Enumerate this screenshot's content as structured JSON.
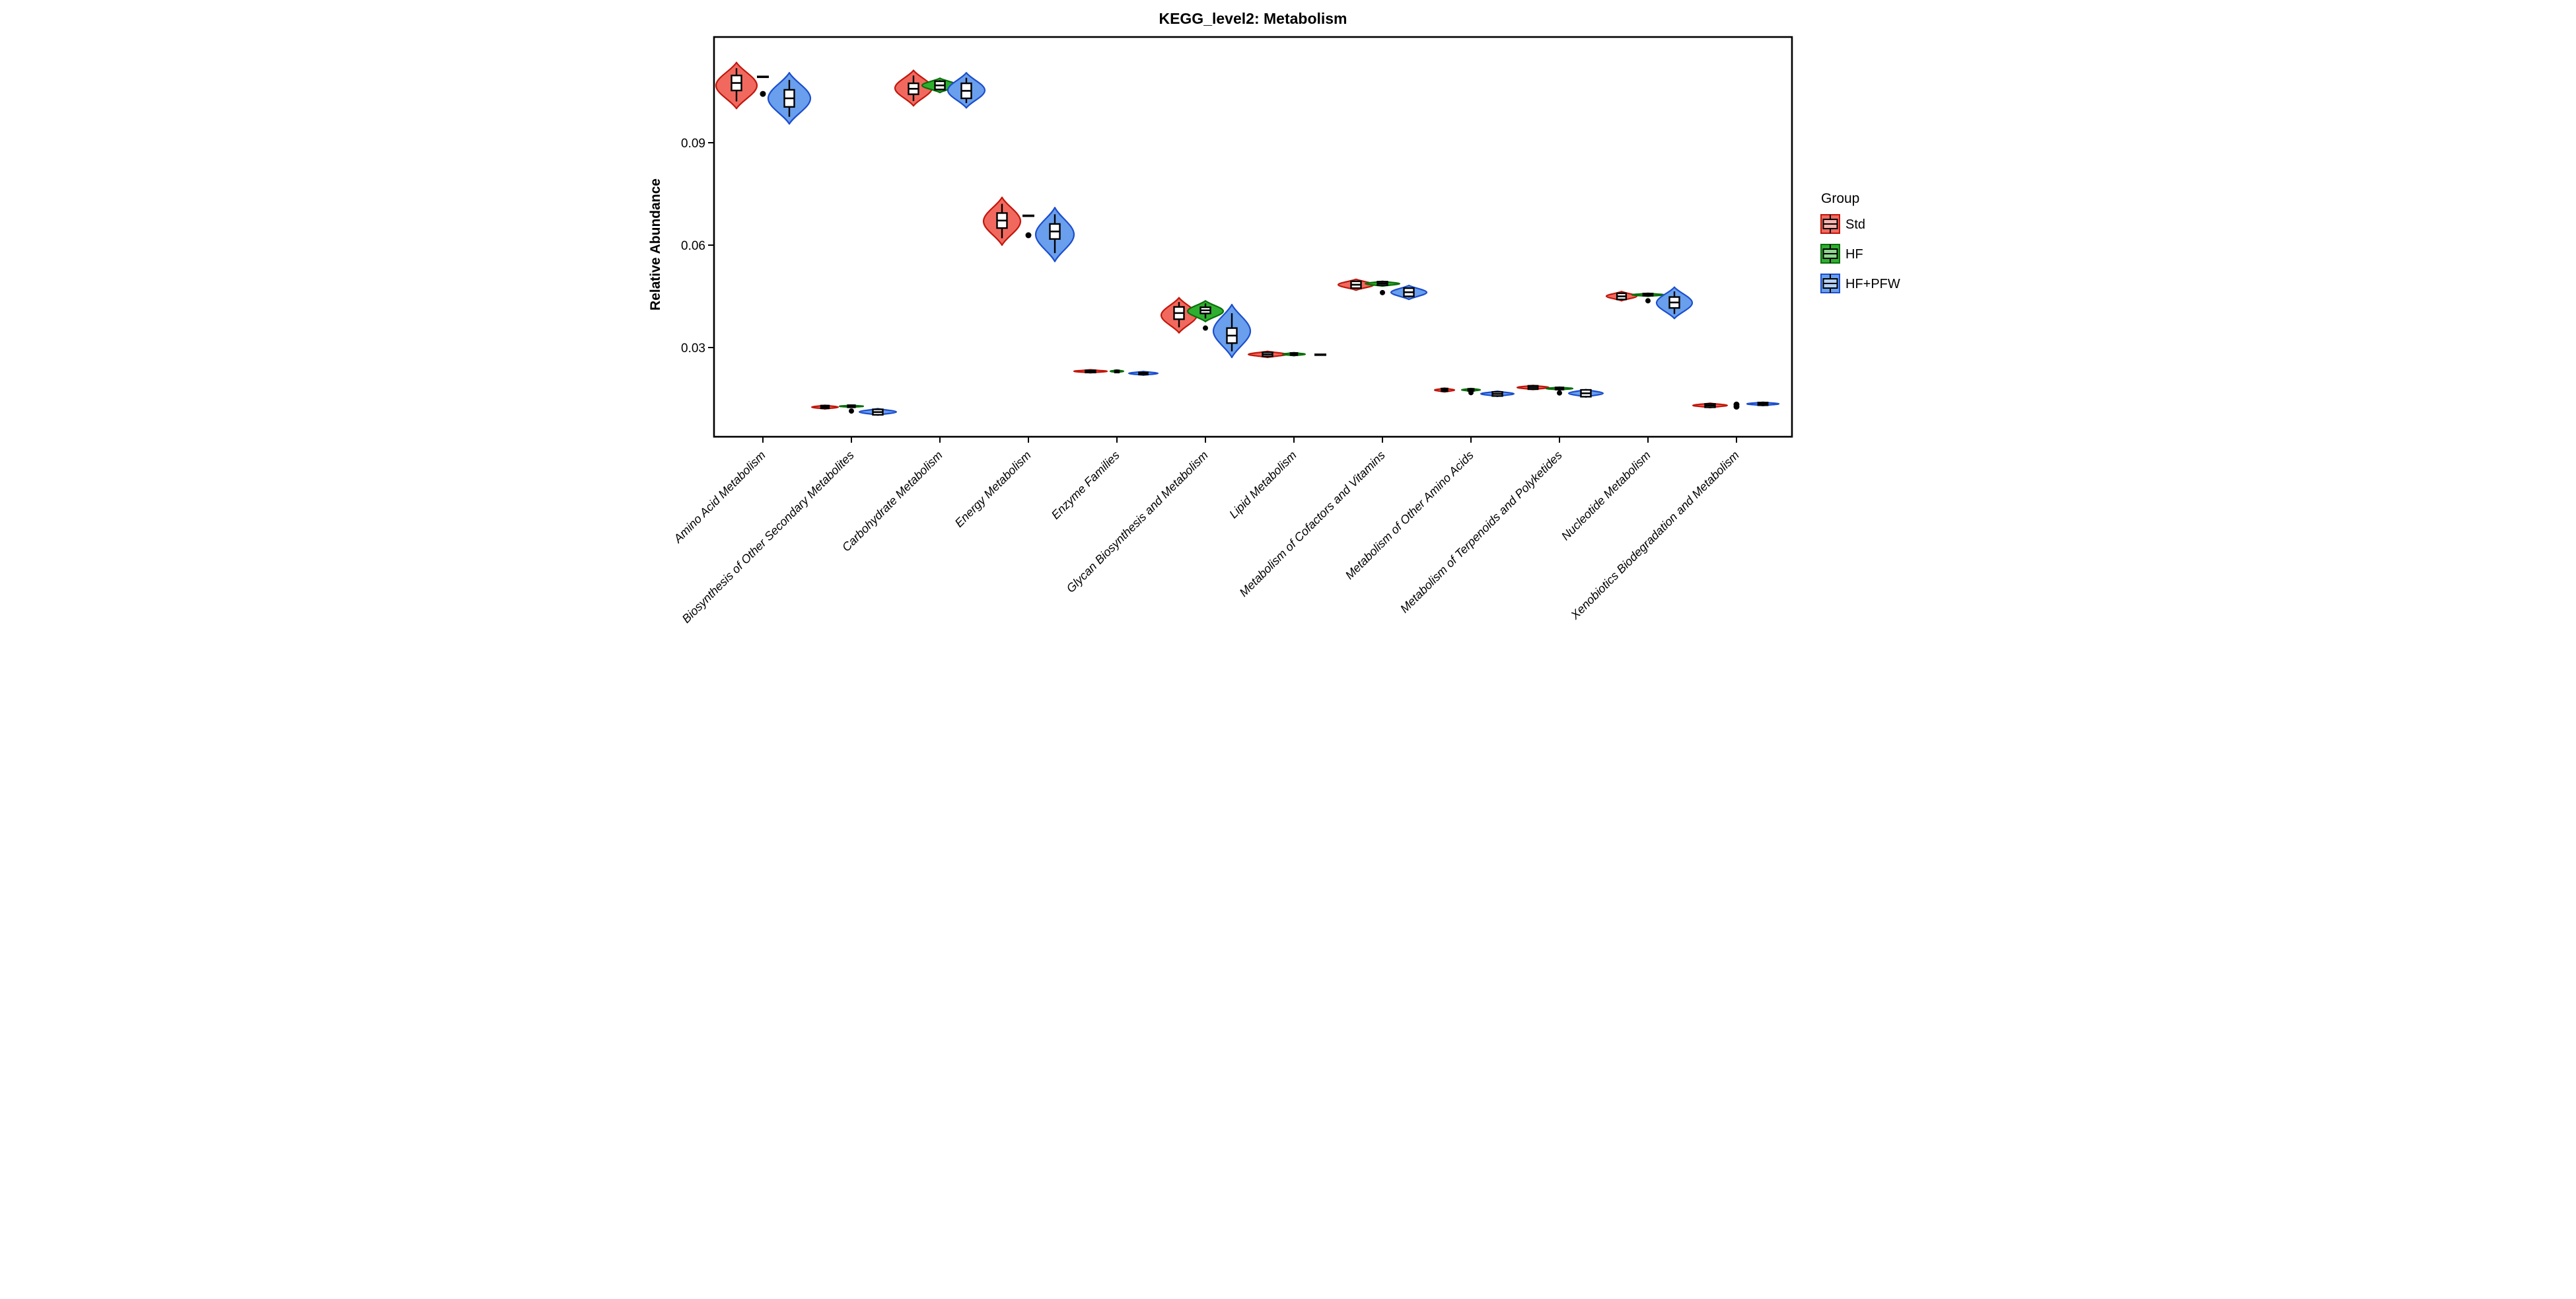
{
  "title": "KEGG_level2: Metabolism",
  "y_axis": {
    "label": "Relative Abundance",
    "ticks": [
      "0.09",
      "0.06",
      "0.03"
    ],
    "tick_values": [
      0.09,
      0.06,
      0.03
    ]
  },
  "legend": {
    "title": "Group",
    "items": [
      {
        "label": "Std"
      },
      {
        "label": "HF"
      },
      {
        "label": "HF+PFW"
      }
    ]
  },
  "colors": {
    "Std": {
      "fill": "#F1695E",
      "stroke": "#C0170C",
      "box_fill": "#F9B4AE"
    },
    "HF": {
      "fill": "#2FAF2F",
      "stroke": "#0B6E0B",
      "box_fill": "#8FD48F"
    },
    "HF+PFW": {
      "fill": "#699FEC",
      "stroke": "#1C4ECC",
      "box_fill": "#B4D1F6"
    }
  },
  "chart_data": {
    "type": "violin",
    "title": "KEGG_level2: Metabolism",
    "xlabel": "",
    "ylabel": "Relative Abundance",
    "ylim": [
      0.004,
      0.121
    ],
    "yticks": [
      0.03,
      0.06,
      0.09
    ],
    "grid": false,
    "legend_position": "right",
    "groups": [
      "Std",
      "HF",
      "HF+PFW"
    ],
    "categories": [
      "Amino Acid Metabolism",
      "Biosynthesis of Other Secondary Metabolites",
      "Carbohydrate Metabolism",
      "Energy Metabolism",
      "Enzyme Families",
      "Glycan Biosynthesis and Metabolism",
      "Lipid Metabolism",
      "Metabolism of Cofactors and Vitamins",
      "Metabolism of Other Amino Acids",
      "Metabolism of Terpenoids and Polyketides",
      "Nucleotide Metabolism",
      "Xenobiotics Biodegradation and Metabolism"
    ],
    "series": [
      {
        "name": "Std",
        "stats": [
          {
            "style": "violin",
            "med": 0.1075,
            "lo": 0.1,
            "hi": 0.1135,
            "w": 31,
            "boxh": 0.0022
          },
          {
            "style": "violin",
            "med": 0.0126,
            "lo": 0.012,
            "hi": 0.0131,
            "w": 20,
            "boxh": 0.0004
          },
          {
            "style": "violin",
            "med": 0.1058,
            "lo": 0.1008,
            "hi": 0.1112,
            "w": 28,
            "boxh": 0.0016
          },
          {
            "style": "violin",
            "med": 0.0672,
            "lo": 0.06,
            "hi": 0.074,
            "w": 28,
            "boxh": 0.0022
          },
          {
            "style": "violin",
            "med": 0.023,
            "lo": 0.0226,
            "hi": 0.0235,
            "w": 25,
            "boxh": 0.0003
          },
          {
            "style": "violin",
            "med": 0.0401,
            "lo": 0.0343,
            "hi": 0.0446,
            "w": 27,
            "boxh": 0.0018
          },
          {
            "style": "violin",
            "med": 0.028,
            "lo": 0.0271,
            "hi": 0.0289,
            "w": 29,
            "boxh": 0.0006
          },
          {
            "style": "violin",
            "med": 0.0484,
            "lo": 0.0468,
            "hi": 0.05,
            "w": 27,
            "boxh": 0.001
          },
          {
            "style": "violin",
            "med": 0.0176,
            "lo": 0.017,
            "hi": 0.0181,
            "w": 15,
            "boxh": 0.0004
          },
          {
            "style": "violin",
            "med": 0.0183,
            "lo": 0.0177,
            "hi": 0.0189,
            "w": 24,
            "boxh": 0.0005
          },
          {
            "style": "violin",
            "med": 0.045,
            "lo": 0.0437,
            "hi": 0.0464,
            "w": 23,
            "boxh": 0.0009
          },
          {
            "style": "violin",
            "med": 0.013,
            "lo": 0.0124,
            "hi": 0.0137,
            "w": 26,
            "boxh": 0.0005
          }
        ]
      },
      {
        "name": "HF",
        "stats": [
          {
            "style": "dots",
            "dash": 0.1093,
            "out": [
              0.1043
            ]
          },
          {
            "style": "violin",
            "med": 0.0128,
            "lo": 0.0125,
            "hi": 0.0131,
            "w": 18,
            "boxh": 0.0003,
            "out": [
              0.0114
            ]
          },
          {
            "style": "violin",
            "med": 0.1068,
            "lo": 0.1047,
            "hi": 0.1089,
            "w": 27,
            "boxh": 0.0012
          },
          {
            "style": "dots",
            "dash": 0.0686,
            "out": [
              0.0629
            ]
          },
          {
            "style": "violin",
            "med": 0.023,
            "lo": 0.0227,
            "hi": 0.0234,
            "w": 10,
            "boxh": 0.0002
          },
          {
            "style": "violin",
            "med": 0.0409,
            "lo": 0.0376,
            "hi": 0.0437,
            "w": 27,
            "boxh": 0.0009,
            "out": [
              0.0357
            ]
          },
          {
            "style": "violin",
            "med": 0.0281,
            "lo": 0.0276,
            "hi": 0.0285,
            "w": 17,
            "boxh": 0.0003
          },
          {
            "style": "violin",
            "med": 0.0488,
            "lo": 0.048,
            "hi": 0.0494,
            "w": 26,
            "boxh": 0.0005,
            "out": [
              0.0461
            ]
          },
          {
            "style": "violin",
            "med": 0.0176,
            "lo": 0.0172,
            "hi": 0.018,
            "w": 14,
            "boxh": 0.0003,
            "out": [
              0.0168
            ]
          },
          {
            "style": "violin",
            "med": 0.018,
            "lo": 0.0176,
            "hi": 0.0184,
            "w": 20,
            "boxh": 0.0003,
            "out": [
              0.0167
            ]
          },
          {
            "style": "violin",
            "med": 0.0455,
            "lo": 0.045,
            "hi": 0.0459,
            "w": 24,
            "boxh": 0.0003,
            "out": [
              0.0437
            ]
          },
          {
            "style": "dots",
            "out": [
              0.0133,
              0.0127
            ]
          }
        ]
      },
      {
        "name": "HF+PFW",
        "stats": [
          {
            "style": "violin",
            "med": 0.103,
            "lo": 0.0955,
            "hi": 0.1105,
            "w": 32,
            "boxh": 0.0025
          },
          {
            "style": "violin",
            "med": 0.0111,
            "lo": 0.0102,
            "hi": 0.0121,
            "w": 28,
            "boxh": 0.0008
          },
          {
            "style": "violin",
            "med": 0.1052,
            "lo": 0.1002,
            "hi": 0.1105,
            "w": 28,
            "boxh": 0.0022
          },
          {
            "style": "violin",
            "med": 0.064,
            "lo": 0.0552,
            "hi": 0.071,
            "w": 29,
            "boxh": 0.0022
          },
          {
            "style": "violin",
            "med": 0.0224,
            "lo": 0.0219,
            "hi": 0.023,
            "w": 22,
            "boxh": 0.0003
          },
          {
            "style": "violin",
            "med": 0.0335,
            "lo": 0.0271,
            "hi": 0.0426,
            "w": 28,
            "boxh": 0.0022
          },
          {
            "style": "dots",
            "dash": 0.0279,
            "out": []
          },
          {
            "style": "violin",
            "med": 0.0462,
            "lo": 0.0441,
            "hi": 0.0482,
            "w": 27,
            "boxh": 0.0012
          },
          {
            "style": "violin",
            "med": 0.0164,
            "lo": 0.0157,
            "hi": 0.0172,
            "w": 25,
            "boxh": 0.0006
          },
          {
            "style": "violin",
            "med": 0.0166,
            "lo": 0.0155,
            "hi": 0.0177,
            "w": 26,
            "boxh": 0.001
          },
          {
            "style": "violin",
            "med": 0.0432,
            "lo": 0.0385,
            "hi": 0.0477,
            "w": 27,
            "boxh": 0.0016
          },
          {
            "style": "violin",
            "med": 0.0135,
            "lo": 0.013,
            "hi": 0.014,
            "w": 24,
            "boxh": 0.0004
          }
        ]
      }
    ]
  }
}
